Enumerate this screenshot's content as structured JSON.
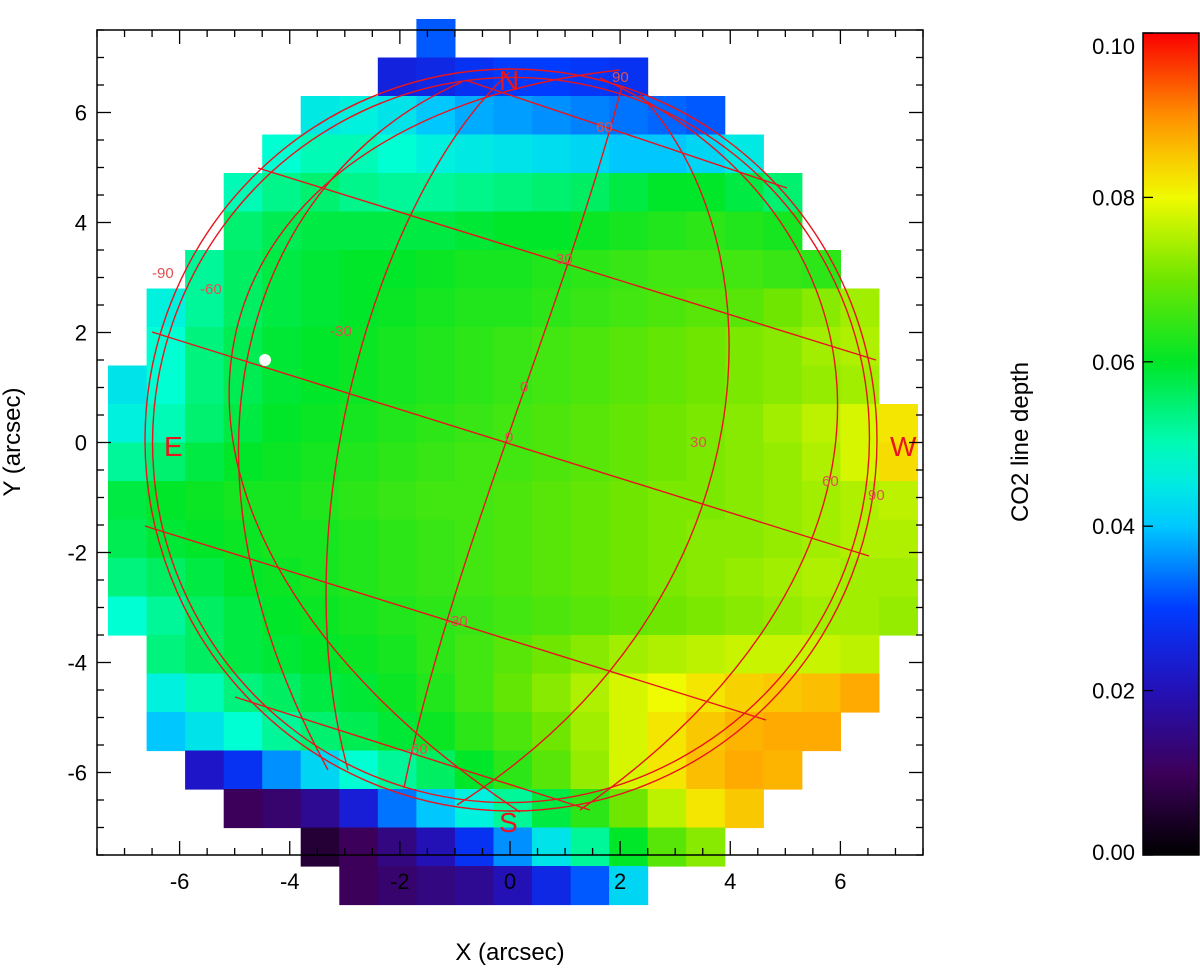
{
  "chart_data": {
    "type": "heatmap",
    "title": "",
    "xlabel": "X (arcsec)",
    "ylabel": "Y (arcsec)",
    "xlim": [
      -7.5,
      7.5
    ],
    "ylim": [
      -7.5,
      7.5
    ],
    "x_ticks": [
      -6,
      -4,
      -2,
      0,
      2,
      4,
      6
    ],
    "y_ticks": [
      -6,
      -4,
      -2,
      0,
      2,
      4,
      6
    ],
    "x_tick_labels": [
      "-6",
      "-4",
      "-2",
      "0",
      "2",
      "4",
      "6"
    ],
    "y_tick_labels": [
      "-6",
      "-4",
      "-2",
      "0",
      "2",
      "4",
      "6"
    ],
    "pixel_size": 0.7,
    "grid_origin_x": -7.3,
    "grid_origin_y": 7.7,
    "colorbar": {
      "label": "CO2 line depth",
      "min": 0.0,
      "max": 0.1,
      "ticks": [
        0.0,
        0.02,
        0.04,
        0.06,
        0.08,
        0.1
      ],
      "tick_labels": [
        "0.00",
        "0.02",
        "0.04",
        "0.06",
        "0.08",
        "0.10"
      ],
      "colormap": "rainbow (black-purple-blue-cyan-green-yellow-orange-red)"
    },
    "rows": [
      {
        "col_start": 8,
        "values": [
          0.032
        ]
      },
      {
        "col_start": 7,
        "values": [
          0.025,
          0.026,
          0.028,
          0.03,
          0.03,
          0.029,
          0.028
        ]
      },
      {
        "col_start": 5,
        "values": [
          0.045,
          0.046,
          0.044,
          0.04,
          0.038,
          0.037,
          0.036,
          0.035,
          0.034,
          0.033,
          0.032
        ]
      },
      {
        "col_start": 4,
        "values": [
          0.048,
          0.05,
          0.05,
          0.048,
          0.046,
          0.045,
          0.044,
          0.043,
          0.042,
          0.04,
          0.04,
          0.042,
          0.045
        ]
      },
      {
        "col_start": 3,
        "values": [
          0.05,
          0.053,
          0.055,
          0.053,
          0.052,
          0.052,
          0.053,
          0.054,
          0.055,
          0.056,
          0.058,
          0.06,
          0.06,
          0.058,
          0.055
        ]
      },
      {
        "col_start": 3,
        "values": [
          0.055,
          0.057,
          0.058,
          0.058,
          0.058,
          0.058,
          0.059,
          0.06,
          0.06,
          0.061,
          0.062,
          0.063,
          0.064,
          0.063,
          0.062
        ]
      },
      {
        "col_start": 2,
        "values": [
          0.052,
          0.056,
          0.058,
          0.059,
          0.06,
          0.06,
          0.061,
          0.062,
          0.062,
          0.063,
          0.064,
          0.065,
          0.066,
          0.066,
          0.066,
          0.065,
          0.064
        ]
      },
      {
        "col_start": 1,
        "values": [
          0.046,
          0.052,
          0.056,
          0.058,
          0.059,
          0.06,
          0.061,
          0.062,
          0.063,
          0.063,
          0.064,
          0.065,
          0.066,
          0.067,
          0.068,
          0.068,
          0.07,
          0.072,
          0.074
        ]
      },
      {
        "col_start": 1,
        "values": [
          0.048,
          0.054,
          0.057,
          0.059,
          0.06,
          0.061,
          0.062,
          0.063,
          0.064,
          0.065,
          0.066,
          0.067,
          0.068,
          0.069,
          0.07,
          0.071,
          0.072,
          0.074,
          0.075
        ]
      },
      {
        "col_start": 0,
        "values": [
          0.044,
          0.048,
          0.054,
          0.057,
          0.059,
          0.06,
          0.061,
          0.062,
          0.063,
          0.064,
          0.065,
          0.066,
          0.067,
          0.068,
          0.069,
          0.07,
          0.071,
          0.072,
          0.073,
          0.074
        ]
      },
      {
        "col_start": 0,
        "values": [
          0.046,
          0.05,
          0.055,
          0.058,
          0.06,
          0.061,
          0.062,
          0.063,
          0.064,
          0.065,
          0.066,
          0.067,
          0.068,
          0.069,
          0.07,
          0.071,
          0.072,
          0.074,
          0.076,
          0.078,
          0.082
        ]
      },
      {
        "col_start": 0,
        "values": [
          0.052,
          0.055,
          0.058,
          0.06,
          0.061,
          0.062,
          0.063,
          0.064,
          0.065,
          0.066,
          0.066,
          0.067,
          0.068,
          0.069,
          0.07,
          0.071,
          0.072,
          0.073,
          0.075,
          0.078,
          0.083
        ]
      },
      {
        "col_start": 0,
        "values": [
          0.058,
          0.06,
          0.061,
          0.062,
          0.062,
          0.063,
          0.064,
          0.065,
          0.066,
          0.066,
          0.067,
          0.068,
          0.069,
          0.07,
          0.071,
          0.071,
          0.072,
          0.073,
          0.074,
          0.075,
          0.076
        ]
      },
      {
        "col_start": 0,
        "values": [
          0.057,
          0.059,
          0.06,
          0.061,
          0.062,
          0.062,
          0.063,
          0.064,
          0.065,
          0.066,
          0.067,
          0.068,
          0.069,
          0.07,
          0.071,
          0.072,
          0.072,
          0.073,
          0.074,
          0.075,
          0.075
        ]
      },
      {
        "col_start": 0,
        "values": [
          0.054,
          0.056,
          0.058,
          0.06,
          0.061,
          0.062,
          0.063,
          0.064,
          0.065,
          0.066,
          0.067,
          0.068,
          0.069,
          0.07,
          0.071,
          0.072,
          0.073,
          0.074,
          0.075,
          0.074,
          0.074
        ]
      },
      {
        "col_start": 0,
        "values": [
          0.048,
          0.052,
          0.056,
          0.058,
          0.06,
          0.061,
          0.062,
          0.063,
          0.064,
          0.065,
          0.066,
          0.067,
          0.068,
          0.069,
          0.07,
          0.071,
          0.072,
          0.073,
          0.074,
          0.074,
          0.073
        ]
      },
      {
        "col_start": 1,
        "values": [
          0.054,
          0.056,
          0.058,
          0.059,
          0.06,
          0.061,
          0.062,
          0.064,
          0.066,
          0.068,
          0.07,
          0.072,
          0.074,
          0.075,
          0.076,
          0.077,
          0.077,
          0.077,
          0.076
        ]
      },
      {
        "col_start": 1,
        "values": [
          0.046,
          0.05,
          0.054,
          0.056,
          0.058,
          0.059,
          0.061,
          0.063,
          0.066,
          0.069,
          0.072,
          0.075,
          0.078,
          0.08,
          0.082,
          0.084,
          0.085,
          0.086,
          0.088
        ]
      },
      {
        "col_start": 1,
        "values": [
          0.04,
          0.044,
          0.048,
          0.052,
          0.055,
          0.057,
          0.059,
          0.061,
          0.064,
          0.067,
          0.07,
          0.074,
          0.078,
          0.082,
          0.085,
          0.087,
          0.088,
          0.088
        ]
      },
      {
        "col_start": 2,
        "values": [
          0.022,
          0.028,
          0.036,
          0.042,
          0.048,
          0.052,
          0.056,
          0.06,
          0.064,
          0.068,
          0.073,
          0.078,
          0.082,
          0.086,
          0.088,
          0.087
        ]
      },
      {
        "col_start": 3,
        "values": [
          0.01,
          0.012,
          0.016,
          0.024,
          0.034,
          0.04,
          0.046,
          0.052,
          0.058,
          0.064,
          0.07,
          0.076,
          0.082,
          0.085
        ]
      },
      {
        "col_start": 5,
        "values": [
          0.006,
          0.01,
          0.014,
          0.02,
          0.028,
          0.036,
          0.044,
          0.052,
          0.06,
          0.068,
          0.072
        ]
      },
      {
        "col_start": 6,
        "values": [
          0.01,
          0.012,
          0.014,
          0.016,
          0.02,
          0.026,
          0.032,
          0.042
        ]
      }
    ],
    "overlay": {
      "compass_labels": [
        "N",
        "S",
        "E",
        "W"
      ],
      "meridian_labels": [
        "-90",
        "-60",
        "-30",
        "0",
        "30",
        "60",
        "90"
      ],
      "latitude_labels": [
        "60",
        "30",
        "0",
        "-30",
        "-60"
      ],
      "marker": "white dot"
    }
  },
  "colors": {
    "overlay_lines": "#e8141e",
    "grid_label": "#e05050",
    "marker": "#ffffff"
  }
}
